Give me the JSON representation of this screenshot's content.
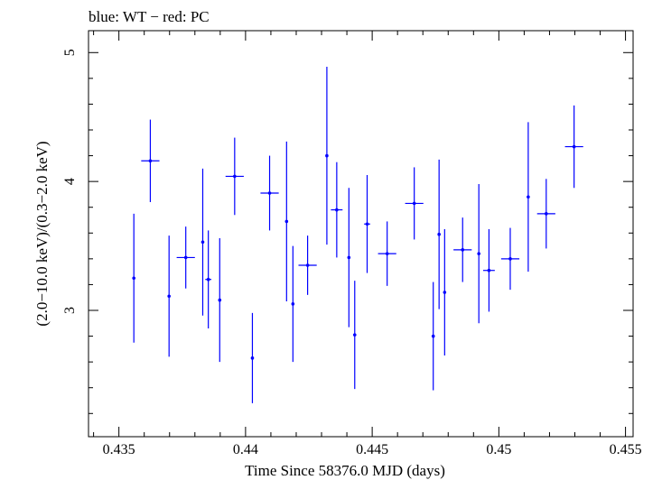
{
  "chart_data": {
    "type": "scatter",
    "title": "blue: WT − red: PC",
    "xlabel": "Time Since 58376.0 MJD (days)",
    "ylabel": "(2.0−10.0 keV)/(0.3−2.0 keV)",
    "xlim": [
      0.4338,
      0.4553
    ],
    "ylim": [
      2.02,
      5.17
    ],
    "xticks": [
      {
        "value": 0.435,
        "label": "0.435"
      },
      {
        "value": 0.44,
        "label": "0.44"
      },
      {
        "value": 0.445,
        "label": "0.445"
      },
      {
        "value": 0.45,
        "label": "0.45"
      },
      {
        "value": 0.455,
        "label": "0.455"
      }
    ],
    "yticks": [
      {
        "value": 3,
        "label": "3"
      },
      {
        "value": 4,
        "label": "4"
      },
      {
        "value": 5,
        "label": "5"
      }
    ],
    "grid": false,
    "series": [
      {
        "color": "#0000ff",
        "points": [
          {
            "x": 0.43559,
            "xerr": 5e-05,
            "y": 3.25,
            "yerr": 0.5
          },
          {
            "x": 0.43624,
            "xerr": 0.00036,
            "y": 4.16,
            "yerr": 0.32
          },
          {
            "x": 0.43698,
            "xerr": 5e-05,
            "y": 3.11,
            "yerr": 0.47
          },
          {
            "x": 0.43764,
            "xerr": 0.00036,
            "y": 3.41,
            "yerr": 0.24
          },
          {
            "x": 0.43831,
            "xerr": 5e-05,
            "y": 3.53,
            "yerr": 0.57
          },
          {
            "x": 0.43853,
            "xerr": 0.00012,
            "y": 3.24,
            "yerr": 0.38
          },
          {
            "x": 0.43898,
            "xerr": 5e-05,
            "y": 3.08,
            "yerr": 0.48
          },
          {
            "x": 0.43957,
            "xerr": 0.00036,
            "y": 4.04,
            "yerr": 0.3
          },
          {
            "x": 0.44027,
            "xerr": 5e-05,
            "y": 2.63,
            "yerr": 0.35
          },
          {
            "x": 0.44095,
            "xerr": 0.00036,
            "y": 3.91,
            "yerr": 0.29
          },
          {
            "x": 0.44162,
            "xerr": 5e-05,
            "y": 3.69,
            "yerr": 0.62
          },
          {
            "x": 0.44187,
            "xerr": 5e-05,
            "y": 3.05,
            "yerr": 0.45
          },
          {
            "x": 0.44245,
            "xerr": 0.00036,
            "y": 3.35,
            "yerr": 0.23
          },
          {
            "x": 0.44321,
            "xerr": 5e-05,
            "y": 4.2,
            "yerr": 0.69
          },
          {
            "x": 0.4436,
            "xerr": 0.00023,
            "y": 3.78,
            "yerr": 0.37
          },
          {
            "x": 0.44408,
            "xerr": 5e-05,
            "y": 3.41,
            "yerr": 0.54
          },
          {
            "x": 0.44431,
            "xerr": 5e-05,
            "y": 2.81,
            "yerr": 0.42
          },
          {
            "x": 0.4448,
            "xerr": 0.00012,
            "y": 3.67,
            "yerr": 0.38
          },
          {
            "x": 0.44559,
            "xerr": 0.00036,
            "y": 3.44,
            "yerr": 0.25
          },
          {
            "x": 0.44666,
            "xerr": 0.00036,
            "y": 3.83,
            "yerr": 0.28
          },
          {
            "x": 0.44741,
            "xerr": 5e-05,
            "y": 2.8,
            "yerr": 0.42
          },
          {
            "x": 0.44764,
            "xerr": 5e-05,
            "y": 3.59,
            "yerr": 0.58
          },
          {
            "x": 0.44786,
            "xerr": 5e-05,
            "y": 3.14,
            "yerr": 0.49
          },
          {
            "x": 0.44857,
            "xerr": 0.00036,
            "y": 3.47,
            "yerr": 0.25
          },
          {
            "x": 0.44921,
            "xerr": 5e-05,
            "y": 3.44,
            "yerr": 0.54
          },
          {
            "x": 0.44961,
            "xerr": 0.00023,
            "y": 3.31,
            "yerr": 0.32
          },
          {
            "x": 0.45045,
            "xerr": 0.00036,
            "y": 3.4,
            "yerr": 0.24
          },
          {
            "x": 0.45116,
            "xerr": 5e-05,
            "y": 3.88,
            "yerr": 0.58
          },
          {
            "x": 0.45187,
            "xerr": 0.00036,
            "y": 3.75,
            "yerr": 0.27
          },
          {
            "x": 0.45297,
            "xerr": 0.00036,
            "y": 4.27,
            "yerr": 0.32
          }
        ]
      }
    ]
  }
}
